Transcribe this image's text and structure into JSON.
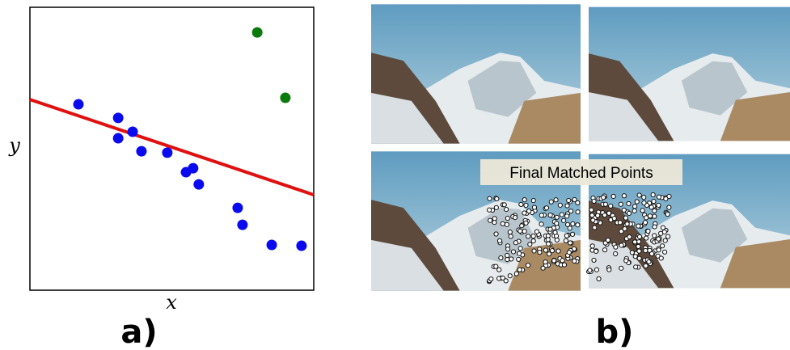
{
  "chart_data": {
    "type": "scatter",
    "x_label": "x",
    "y_label": "y",
    "xlim": [
      0,
      100
    ],
    "ylim": [
      0,
      100
    ],
    "series": [
      {
        "color": "#0a0aee",
        "x": [
          17.1,
          31.1,
          36.2,
          31.1,
          39.3,
          48.4,
          57.5,
          55.0,
          59.5,
          73.2,
          74.9,
          85.2,
          95.7
        ],
        "values": [
          65.7,
          60.9,
          56.0,
          53.7,
          49.1,
          48.6,
          43.1,
          41.7,
          37.4,
          29.1,
          23.1,
          16.0,
          15.7
        ]
      },
      {
        "color": "#0a7a0a",
        "x": [
          80.1,
          90.0
        ],
        "values": [
          91.1,
          68.0
        ]
      }
    ],
    "fit_line": {
      "color": "#e01010",
      "x": [
        0,
        100
      ],
      "values": [
        67.4,
        33.7
      ]
    },
    "panel_label": "a)"
  },
  "panel_b": {
    "overlay_label": "Final Matched Points",
    "panel_label": "b)"
  }
}
